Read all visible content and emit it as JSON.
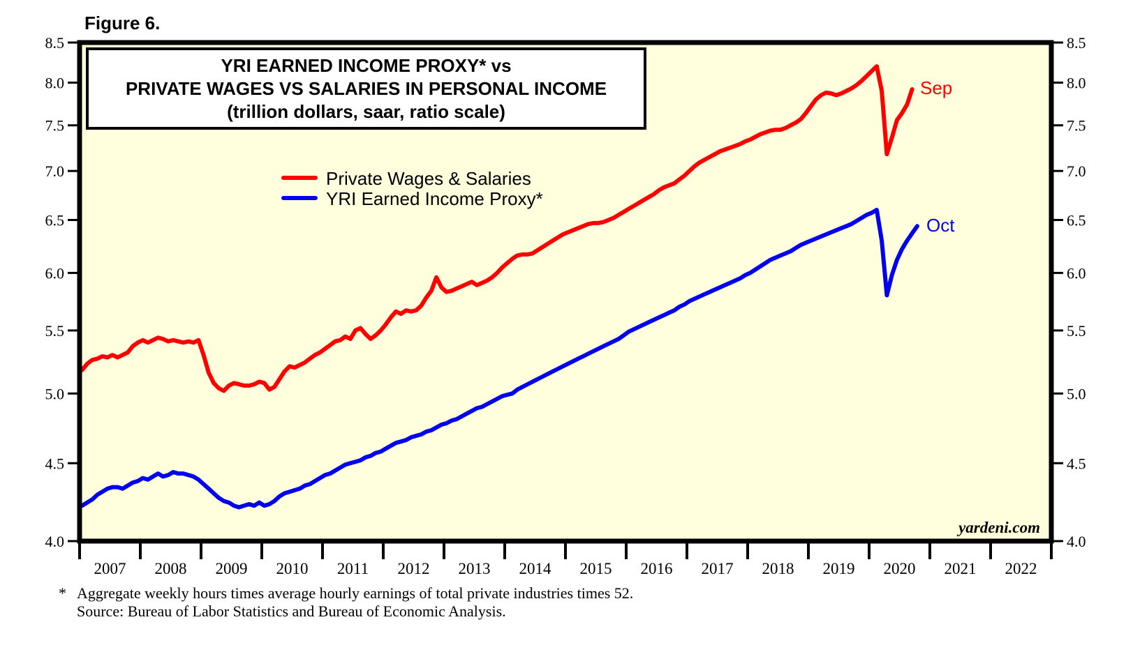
{
  "figure_label": "Figure 6.",
  "title": {
    "line1": "YRI EARNED INCOME PROXY* vs",
    "line2": "PRIVATE WAGES VS SALARIES IN PERSONAL INCOME",
    "line3": "(trillion dollars, saar, ratio scale)"
  },
  "watermark": "yardeni.com",
  "footnote": {
    "asterisk": "*",
    "line1": "Aggregate weekly hours times average hourly earnings of total private industries times 52.",
    "line2": "Source: Bureau of Labor Statistics and Bureau of Economic Analysis."
  },
  "chart_data": {
    "type": "line",
    "title": "YRI EARNED INCOME PROXY* vs PRIVATE WAGES VS SALARIES IN PERSONAL INCOME (trillion dollars, saar, ratio scale)",
    "y_scale": "log",
    "ylim": [
      4.0,
      8.5
    ],
    "y_ticks": [
      4.0,
      4.5,
      5.0,
      5.5,
      6.0,
      6.5,
      7.0,
      7.5,
      8.0,
      8.5
    ],
    "y_tick_side": "both",
    "x_axis_start_year": 2007,
    "x_axis_end_year": 2023,
    "x_year_labels": [
      "2007",
      "2008",
      "2009",
      "2010",
      "2011",
      "2012",
      "2013",
      "2014",
      "2015",
      "2016",
      "2017",
      "2018",
      "2019",
      "2020",
      "2021",
      "2022"
    ],
    "plot_background": "#ffffde",
    "frame_color": "#000000",
    "legend_position": "inside-top-left",
    "grid": false,
    "series": [
      {
        "name": "Private Wages & Salaries",
        "color": "#ff0000",
        "end_label": "Sep",
        "start_month": "2007-01",
        "end_month": "2020-09",
        "values": [
          5.18,
          5.23,
          5.26,
          5.27,
          5.29,
          5.28,
          5.3,
          5.28,
          5.3,
          5.32,
          5.37,
          5.4,
          5.42,
          5.4,
          5.42,
          5.44,
          5.43,
          5.41,
          5.42,
          5.41,
          5.4,
          5.41,
          5.4,
          5.42,
          5.3,
          5.16,
          5.08,
          5.04,
          5.02,
          5.06,
          5.08,
          5.07,
          5.06,
          5.06,
          5.07,
          5.09,
          5.08,
          5.03,
          5.05,
          5.11,
          5.17,
          5.21,
          5.2,
          5.22,
          5.24,
          5.27,
          5.3,
          5.32,
          5.35,
          5.38,
          5.41,
          5.42,
          5.45,
          5.43,
          5.5,
          5.52,
          5.47,
          5.43,
          5.46,
          5.5,
          5.55,
          5.61,
          5.66,
          5.64,
          5.67,
          5.66,
          5.67,
          5.71,
          5.78,
          5.84,
          5.96,
          5.87,
          5.83,
          5.84,
          5.86,
          5.88,
          5.9,
          5.92,
          5.89,
          5.91,
          5.93,
          5.96,
          6.0,
          6.05,
          6.09,
          6.13,
          6.16,
          6.17,
          6.17,
          6.18,
          6.21,
          6.24,
          6.27,
          6.3,
          6.33,
          6.36,
          6.38,
          6.4,
          6.42,
          6.44,
          6.46,
          6.47,
          6.47,
          6.48,
          6.5,
          6.52,
          6.55,
          6.58,
          6.61,
          6.64,
          6.67,
          6.7,
          6.73,
          6.76,
          6.8,
          6.83,
          6.85,
          6.87,
          6.91,
          6.95,
          7.0,
          7.05,
          7.09,
          7.12,
          7.15,
          7.18,
          7.21,
          7.23,
          7.25,
          7.27,
          7.29,
          7.32,
          7.34,
          7.37,
          7.4,
          7.42,
          7.44,
          7.45,
          7.45,
          7.47,
          7.5,
          7.53,
          7.57,
          7.64,
          7.72,
          7.8,
          7.85,
          7.88,
          7.87,
          7.85,
          7.87,
          7.9,
          7.93,
          7.97,
          8.02,
          8.08,
          8.14,
          8.2,
          7.9,
          7.18,
          7.36,
          7.56,
          7.64,
          7.74,
          7.92
        ]
      },
      {
        "name": "YRI Earned Income Proxy*",
        "color": "#0000ee",
        "end_label": "Oct",
        "start_month": "2007-01",
        "end_month": "2020-10",
        "values": [
          4.22,
          4.24,
          4.26,
          4.29,
          4.31,
          4.33,
          4.34,
          4.34,
          4.33,
          4.35,
          4.37,
          4.38,
          4.4,
          4.39,
          4.41,
          4.43,
          4.41,
          4.42,
          4.44,
          4.43,
          4.43,
          4.42,
          4.41,
          4.39,
          4.36,
          4.33,
          4.3,
          4.27,
          4.25,
          4.24,
          4.22,
          4.21,
          4.22,
          4.23,
          4.22,
          4.24,
          4.22,
          4.23,
          4.25,
          4.28,
          4.3,
          4.31,
          4.32,
          4.33,
          4.35,
          4.36,
          4.38,
          4.4,
          4.42,
          4.43,
          4.45,
          4.47,
          4.49,
          4.5,
          4.51,
          4.52,
          4.54,
          4.55,
          4.57,
          4.58,
          4.6,
          4.62,
          4.64,
          4.65,
          4.66,
          4.68,
          4.69,
          4.7,
          4.72,
          4.73,
          4.75,
          4.77,
          4.78,
          4.8,
          4.81,
          4.83,
          4.85,
          4.87,
          4.89,
          4.9,
          4.92,
          4.94,
          4.96,
          4.98,
          4.99,
          5.0,
          5.03,
          5.05,
          5.07,
          5.09,
          5.11,
          5.13,
          5.15,
          5.17,
          5.19,
          5.21,
          5.23,
          5.25,
          5.27,
          5.29,
          5.31,
          5.33,
          5.35,
          5.37,
          5.39,
          5.41,
          5.43,
          5.46,
          5.49,
          5.51,
          5.53,
          5.55,
          5.57,
          5.59,
          5.61,
          5.63,
          5.65,
          5.67,
          5.7,
          5.72,
          5.75,
          5.77,
          5.79,
          5.81,
          5.83,
          5.85,
          5.87,
          5.89,
          5.91,
          5.93,
          5.95,
          5.98,
          6.0,
          6.03,
          6.06,
          6.09,
          6.12,
          6.14,
          6.16,
          6.18,
          6.2,
          6.23,
          6.26,
          6.28,
          6.3,
          6.32,
          6.34,
          6.36,
          6.38,
          6.4,
          6.42,
          6.44,
          6.46,
          6.49,
          6.52,
          6.55,
          6.57,
          6.6,
          6.3,
          5.8,
          5.98,
          6.12,
          6.22,
          6.3,
          6.37,
          6.44
        ]
      }
    ]
  }
}
